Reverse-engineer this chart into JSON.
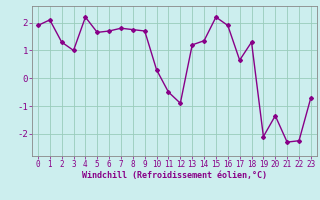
{
  "x": [
    0,
    1,
    2,
    3,
    4,
    5,
    6,
    7,
    8,
    9,
    10,
    11,
    12,
    13,
    14,
    15,
    16,
    17,
    18,
    19,
    20,
    21,
    22,
    23
  ],
  "y": [
    1.9,
    2.1,
    1.3,
    1.0,
    2.2,
    1.65,
    1.7,
    1.8,
    1.75,
    1.7,
    0.3,
    -0.5,
    -0.9,
    1.2,
    1.35,
    2.2,
    1.9,
    0.65,
    1.3,
    -2.1,
    -1.35,
    -2.3,
    -2.25,
    -0.7
  ],
  "line_color": "#880088",
  "marker": "D",
  "marker_size": 2.0,
  "line_width": 1.0,
  "bg_color": "#cceeee",
  "grid_color": "#99ccbb",
  "xlabel": "Windchill (Refroidissement éolien,°C)",
  "xlabel_fontsize": 6.0,
  "xlim": [
    -0.5,
    23.5
  ],
  "ylim": [
    -2.8,
    2.6
  ],
  "yticks": [
    -2,
    -1,
    0,
    1,
    2
  ],
  "xticks": [
    0,
    1,
    2,
    3,
    4,
    5,
    6,
    7,
    8,
    9,
    10,
    11,
    12,
    13,
    14,
    15,
    16,
    17,
    18,
    19,
    20,
    21,
    22,
    23
  ],
  "tick_fontsize": 5.5,
  "tick_color": "#880088",
  "spine_color": "#888888"
}
